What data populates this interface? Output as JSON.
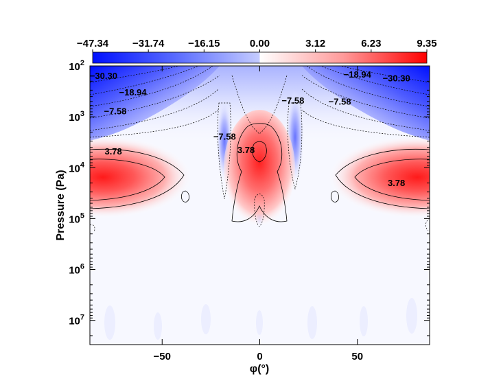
{
  "chart_data": {
    "type": "heatmap",
    "xlabel": "φ(°)",
    "ylabel": "Pressure (Pa)",
    "xlim": [
      -87,
      87
    ],
    "xticks": [
      -50,
      0,
      50
    ],
    "xtick_labels": [
      "−50",
      "0",
      "50"
    ],
    "y_scale": "log",
    "ylim": [
      100,
      30000000
    ],
    "yticks": [
      {
        "value": 100,
        "base": "10",
        "exp": "2"
      },
      {
        "value": 1000,
        "base": "10",
        "exp": "3"
      },
      {
        "value": 10000,
        "base": "10",
        "exp": "4"
      },
      {
        "value": 100000,
        "base": "10",
        "exp": "5"
      },
      {
        "value": 1000000,
        "base": "10",
        "exp": "6"
      },
      {
        "value": 10000000,
        "base": "10",
        "exp": "7"
      }
    ],
    "colorbar": {
      "orientation": "horizontal",
      "position": "top",
      "tick_labels": [
        "−47.34",
        "−31.74",
        "−16.15",
        "0.00",
        "3.12",
        "6.23",
        "9.35"
      ],
      "colors": {
        "min": "#0010ff",
        "mid": "#ffffff",
        "max": "#ff0000"
      }
    },
    "contour_labels": [
      {
        "text": "−30.30",
        "x": -80,
        "y": 180
      },
      {
        "text": "−18.94",
        "x": -65,
        "y": 380
      },
      {
        "text": "−7.58",
        "x": -74,
        "y": 900
      },
      {
        "text": "−7.58",
        "x": -18,
        "y": 2800
      },
      {
        "text": "−7.58",
        "x": 17,
        "y": 550
      },
      {
        "text": "−18.94",
        "x": 50,
        "y": 170
      },
      {
        "text": "−30.30",
        "x": 70,
        "y": 200
      },
      {
        "text": "−7.58",
        "x": 41,
        "y": 580
      },
      {
        "text": "3.78",
        "x": -75,
        "y": 5500
      },
      {
        "text": "3.78",
        "x": -7,
        "y": 5200
      },
      {
        "text": "3.78",
        "x": 70,
        "y": 23000
      }
    ],
    "features": [
      {
        "kind": "positive",
        "lon": -85,
        "p": 10000,
        "peak": 9.3
      },
      {
        "kind": "positive",
        "lon": 85,
        "p": 10000,
        "peak": 9.3
      },
      {
        "kind": "positive",
        "lon": 0,
        "p": 3000,
        "peak": 9.0
      },
      {
        "kind": "negative",
        "lon": -90,
        "p": 100,
        "peak": -47.3
      },
      {
        "kind": "negative",
        "lon": 90,
        "p": 100,
        "peak": -47.3
      }
    ]
  }
}
